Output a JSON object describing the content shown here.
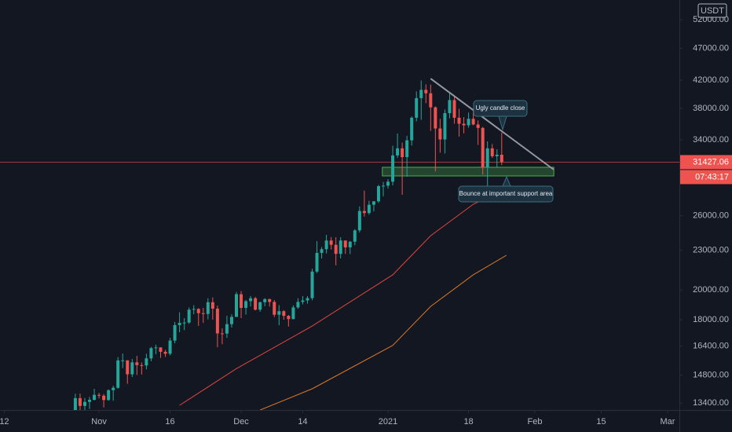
{
  "chart_data": {
    "type": "candlestick",
    "currency": "USDT",
    "log_scale": true,
    "grid": false,
    "up_color": "#26a69a",
    "down_color": "#ef5350",
    "background": "#131722",
    "xlim": [
      -15.9,
      127.5
    ],
    "xticks": [
      {
        "value": -15,
        "label": "12"
      },
      {
        "value": 5,
        "label": "Nov"
      },
      {
        "value": 20,
        "label": "16"
      },
      {
        "value": 35,
        "label": "Dec"
      },
      {
        "value": 48,
        "label": "14"
      },
      {
        "value": 66,
        "label": "2021"
      },
      {
        "value": 83,
        "label": "18"
      },
      {
        "value": 97,
        "label": "Feb"
      },
      {
        "value": 111,
        "label": "15"
      },
      {
        "value": 125,
        "label": "Mar"
      }
    ],
    "ylim": [
      13080,
      55760
    ],
    "yticks": [
      {
        "value": 52000,
        "label": "52000.00"
      },
      {
        "value": 47000,
        "label": "47000.00"
      },
      {
        "value": 42000,
        "label": "42000.00"
      },
      {
        "value": 38000,
        "label": "38000.00"
      },
      {
        "value": 34000,
        "label": "34000.00"
      },
      {
        "value": 26000,
        "label": "26000.00"
      },
      {
        "value": 23000,
        "label": "23000.00"
      },
      {
        "value": 20000,
        "label": "20000.00"
      },
      {
        "value": 18000,
        "label": "18000.00"
      },
      {
        "value": 16400,
        "label": "16400.00"
      },
      {
        "value": 14800,
        "label": "14800.00"
      },
      {
        "value": 13400,
        "label": "13400.00"
      }
    ],
    "open": [
      13030,
      13640,
      13270,
      13460,
      13560,
      13800,
      13760,
      13550,
      14030,
      14150,
      15590,
      15590,
      14840,
      15480,
      15330,
      15310,
      15700,
      16280,
      16320,
      16070,
      15960,
      16720,
      17660,
      17800,
      17820,
      18650,
      18700,
      18420,
      18370,
      19150,
      18720,
      17150,
      17140,
      17720,
      18180,
      19700,
      18770,
      19220,
      19420,
      18650,
      19150,
      19360,
      19170,
      18320,
      18550,
      18250,
      18040,
      18800,
      19170,
      19270,
      19430,
      21340,
      22800,
      23100,
      23820,
      23460,
      22720,
      23820,
      23250,
      23720,
      24690,
      26440,
      26250,
      27030,
      27360,
      28870,
      28920,
      29330,
      32180,
      33000,
      31990,
      33950,
      36770,
      39410,
      40580,
      40090,
      38150,
      35400,
      34050,
      37370,
      39140,
      36770,
      36000,
      35800,
      36630,
      35900,
      35470,
      30830,
      33000,
      32090,
      32260
    ],
    "high": [
      13860,
      13860,
      13650,
      13700,
      14100,
      13900,
      13840,
      14070,
      14250,
      15770,
      15970,
      15600,
      15670,
      15840,
      15480,
      15960,
      16350,
      16480,
      16330,
      16180,
      16880,
      17860,
      18480,
      18100,
      18800,
      18950,
      18750,
      18770,
      19420,
      19480,
      18920,
      17460,
      18250,
      18350,
      19860,
      19920,
      19310,
      19580,
      19520,
      19180,
      19420,
      19390,
      19300,
      18950,
      18620,
      18300,
      18940,
      19420,
      19570,
      19570,
      21560,
      23770,
      23280,
      24300,
      24110,
      24100,
      24100,
      23800,
      23780,
      24790,
      26870,
      28420,
      27410,
      27380,
      29000,
      29300,
      29600,
      33300,
      34780,
      33670,
      34500,
      36940,
      40370,
      41950,
      41380,
      41350,
      38270,
      36630,
      37850,
      40100,
      39750,
      37950,
      36850,
      37450,
      37850,
      36420,
      35600,
      33830,
      33500,
      32900,
      34880
    ],
    "low": [
      12950,
      12980,
      12940,
      13130,
      13530,
      13630,
      13200,
      13520,
      13520,
      14100,
      15170,
      14350,
      14700,
      14800,
      14830,
      15100,
      15540,
      15930,
      15730,
      15780,
      15870,
      16560,
      17220,
      17350,
      17740,
      18350,
      17610,
      17800,
      18020,
      18000,
      16330,
      16510,
      16880,
      17510,
      18180,
      18100,
      18330,
      18860,
      18600,
      18510,
      18880,
      18860,
      18170,
      17650,
      18000,
      17570,
      18030,
      18710,
      19000,
      19050,
      19280,
      21230,
      22350,
      22750,
      23070,
      21820,
      22360,
      22720,
      22700,
      23420,
      24500,
      25920,
      26100,
      26400,
      27200,
      27850,
      28620,
      28950,
      31900,
      28000,
      29850,
      33330,
      36300,
      36500,
      38720,
      35100,
      30420,
      32500,
      32400,
      36700,
      36000,
      34400,
      34800,
      35500,
      35800,
      33400,
      30070,
      28850,
      31900,
      30900,
      31100
    ],
    "close": [
      13640,
      13270,
      13460,
      13560,
      13800,
      13760,
      13550,
      14030,
      14150,
      15590,
      15590,
      14840,
      15480,
      15330,
      15310,
      15700,
      16280,
      16320,
      16070,
      15960,
      16720,
      17660,
      17800,
      17820,
      18650,
      18700,
      18420,
      18370,
      19150,
      18720,
      17150,
      17140,
      17720,
      18180,
      19700,
      18770,
      19220,
      19420,
      18650,
      19150,
      19360,
      19170,
      18320,
      18550,
      18250,
      18040,
      18800,
      19170,
      19270,
      19430,
      21340,
      22800,
      23100,
      23820,
      23460,
      22720,
      23820,
      23250,
      23720,
      24690,
      26440,
      26250,
      27030,
      27360,
      28870,
      28920,
      29330,
      32180,
      33000,
      31990,
      33950,
      36770,
      39410,
      40580,
      40090,
      38150,
      35400,
      34050,
      37370,
      39140,
      36770,
      36000,
      35800,
      36630,
      35900,
      35470,
      30830,
      33000,
      32090,
      32260,
      31427.06
    ],
    "moving_averages": [
      {
        "color": "#e0453f",
        "x": [
          22,
          34,
          50,
          67,
          75,
          84,
          91
        ],
        "values": [
          13300,
          15140,
          17600,
          21100,
          24230,
          27080,
          28620
        ]
      },
      {
        "color": "#d9782a",
        "x": [
          39,
          50,
          67,
          75,
          84,
          91
        ],
        "values": [
          13080,
          14100,
          16440,
          18870,
          21100,
          22610
        ]
      }
    ],
    "trendline": {
      "color": "#9598a1",
      "x": [
        75,
        101
      ],
      "values": [
        42230,
        30600
      ]
    },
    "zone": {
      "color": "#4caf50",
      "x": [
        64.8,
        101
      ],
      "values": [
        29930,
        30860
      ]
    },
    "last_price": 31427.06,
    "countdown": "07:43:17",
    "annotations": [
      {
        "text": "Ugly candle close"
      },
      {
        "text": "Bounce at important support area"
      }
    ]
  }
}
